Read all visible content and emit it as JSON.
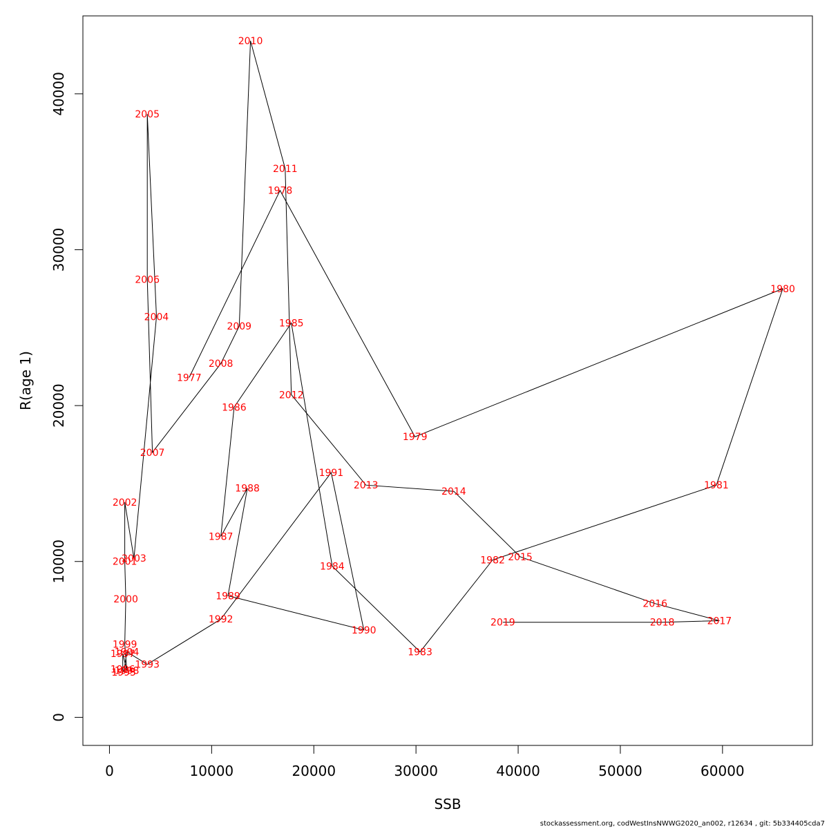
{
  "footer": "stockassessment.org, codWestInsNWWG2020_an002, r12634 , git: 5b334405cda7",
  "chart_data": {
    "type": "line",
    "xlabel": "SSB",
    "ylabel": "R(age 1)",
    "xlim": [
      -2600,
      68800
    ],
    "ylim": [
      -1800,
      45000
    ],
    "x_ticks": [
      0,
      10000,
      20000,
      30000,
      40000,
      50000,
      60000
    ],
    "y_ticks": [
      0,
      10000,
      20000,
      30000,
      40000
    ],
    "grid": false,
    "line_color": "#000000",
    "label_color": "#ff0000",
    "points": [
      {
        "year": "1977",
        "x": 7800,
        "y": 21800
      },
      {
        "year": "1978",
        "x": 16700,
        "y": 33800
      },
      {
        "year": "1979",
        "x": 29900,
        "y": 18000
      },
      {
        "year": "1980",
        "x": 65900,
        "y": 27500
      },
      {
        "year": "1981",
        "x": 59400,
        "y": 14900
      },
      {
        "year": "1982",
        "x": 37500,
        "y": 10100
      },
      {
        "year": "1983",
        "x": 30400,
        "y": 4200
      },
      {
        "year": "1984",
        "x": 21800,
        "y": 9700
      },
      {
        "year": "1985",
        "x": 17800,
        "y": 25300
      },
      {
        "year": "1986",
        "x": 12200,
        "y": 19900
      },
      {
        "year": "1987",
        "x": 10900,
        "y": 11600
      },
      {
        "year": "1988",
        "x": 13500,
        "y": 14700
      },
      {
        "year": "1989",
        "x": 11600,
        "y": 7800
      },
      {
        "year": "1990",
        "x": 24900,
        "y": 5600
      },
      {
        "year": "1991",
        "x": 21700,
        "y": 15700
      },
      {
        "year": "1992",
        "x": 10900,
        "y": 6300
      },
      {
        "year": "1993",
        "x": 3700,
        "y": 3400
      },
      {
        "year": "1994",
        "x": 1700,
        "y": 4200
      },
      {
        "year": "1995",
        "x": 1400,
        "y": 2900
      },
      {
        "year": "1996",
        "x": 1300,
        "y": 3100
      },
      {
        "year": "1997",
        "x": 1300,
        "y": 4100
      },
      {
        "year": "1998",
        "x": 1700,
        "y": 3000
      },
      {
        "year": "1999",
        "x": 1500,
        "y": 4700
      },
      {
        "year": "2000",
        "x": 1600,
        "y": 7600
      },
      {
        "year": "2001",
        "x": 1500,
        "y": 10000
      },
      {
        "year": "2002",
        "x": 1500,
        "y": 13800
      },
      {
        "year": "2003",
        "x": 2400,
        "y": 10200
      },
      {
        "year": "2004",
        "x": 4600,
        "y": 25700
      },
      {
        "year": "2005",
        "x": 3700,
        "y": 38700
      },
      {
        "year": "2006",
        "x": 3700,
        "y": 28100
      },
      {
        "year": "2007",
        "x": 4200,
        "y": 17000
      },
      {
        "year": "2008",
        "x": 10900,
        "y": 22700
      },
      {
        "year": "2009",
        "x": 12700,
        "y": 25100
      },
      {
        "year": "2010",
        "x": 13800,
        "y": 43400
      },
      {
        "year": "2011",
        "x": 17200,
        "y": 35200
      },
      {
        "year": "2012",
        "x": 17800,
        "y": 20700
      },
      {
        "year": "2013",
        "x": 25100,
        "y": 14900
      },
      {
        "year": "2014",
        "x": 33700,
        "y": 14500
      },
      {
        "year": "2015",
        "x": 40200,
        "y": 10300
      },
      {
        "year": "2016",
        "x": 53400,
        "y": 7300
      },
      {
        "year": "2017",
        "x": 59700,
        "y": 6200
      },
      {
        "year": "2018",
        "x": 54100,
        "y": 6100
      },
      {
        "year": "2019",
        "x": 38500,
        "y": 6100
      }
    ]
  }
}
